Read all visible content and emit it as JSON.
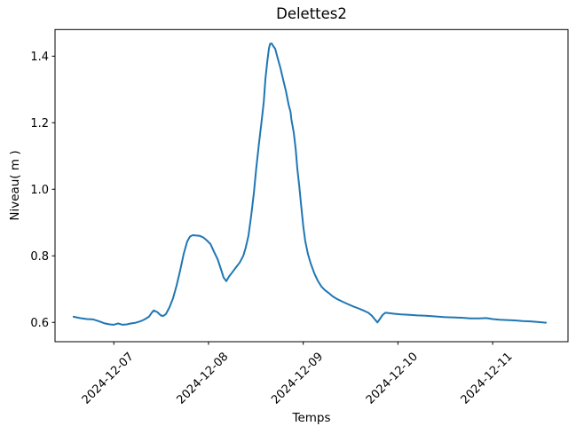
{
  "chart_data": {
    "type": "line",
    "title": "Delettes2",
    "xlabel": "Temps",
    "ylabel": "Niveau( m )",
    "line_color": "#1f77b4",
    "axis_color": "#000000",
    "grid": false,
    "legend": null,
    "x_unit": "hours since 2024-12-06 00:00",
    "xlim_hours": [
      9.1,
      139.1
    ],
    "ylim": [
      0.542,
      1.48
    ],
    "xticks": [
      {
        "label": "2024-12-07",
        "t": 24
      },
      {
        "label": "2024-12-08",
        "t": 48
      },
      {
        "label": "2024-12-09",
        "t": 72
      },
      {
        "label": "2024-12-10",
        "t": 96
      },
      {
        "label": "2024-12-11",
        "t": 120
      }
    ],
    "yticks": [
      0.6,
      0.8,
      1.0,
      1.2,
      1.4
    ],
    "series": [
      {
        "name": "Niveau",
        "points": [
          [
            13.8,
            0.617
          ],
          [
            15.4,
            0.613
          ],
          [
            17.2,
            0.61
          ],
          [
            18.8,
            0.609
          ],
          [
            20.3,
            0.603
          ],
          [
            21.7,
            0.597
          ],
          [
            23.0,
            0.594
          ],
          [
            24.0,
            0.593
          ],
          [
            25.1,
            0.597
          ],
          [
            26.2,
            0.593
          ],
          [
            27.3,
            0.594
          ],
          [
            28.4,
            0.597
          ],
          [
            29.6,
            0.599
          ],
          [
            30.7,
            0.603
          ],
          [
            31.8,
            0.609
          ],
          [
            32.9,
            0.617
          ],
          [
            33.6,
            0.629
          ],
          [
            34.1,
            0.636
          ],
          [
            35.0,
            0.631
          ],
          [
            35.9,
            0.621
          ],
          [
            36.5,
            0.619
          ],
          [
            37.2,
            0.625
          ],
          [
            38.1,
            0.645
          ],
          [
            39.0,
            0.672
          ],
          [
            39.9,
            0.71
          ],
          [
            40.8,
            0.755
          ],
          [
            41.7,
            0.805
          ],
          [
            42.6,
            0.843
          ],
          [
            43.3,
            0.858
          ],
          [
            44.0,
            0.862
          ],
          [
            44.9,
            0.861
          ],
          [
            45.8,
            0.86
          ],
          [
            46.7,
            0.855
          ],
          [
            47.6,
            0.846
          ],
          [
            48.5,
            0.835
          ],
          [
            49.4,
            0.812
          ],
          [
            50.3,
            0.79
          ],
          [
            51.2,
            0.758
          ],
          [
            51.8,
            0.735
          ],
          [
            52.5,
            0.724
          ],
          [
            53.2,
            0.738
          ],
          [
            54.1,
            0.752
          ],
          [
            55.0,
            0.766
          ],
          [
            55.9,
            0.78
          ],
          [
            56.8,
            0.8
          ],
          [
            57.4,
            0.823
          ],
          [
            58.1,
            0.86
          ],
          [
            58.8,
            0.92
          ],
          [
            59.5,
            0.99
          ],
          [
            60.1,
            1.065
          ],
          [
            60.8,
            1.14
          ],
          [
            61.5,
            1.21
          ],
          [
            62.0,
            1.262
          ],
          [
            62.4,
            1.33
          ],
          [
            62.9,
            1.385
          ],
          [
            63.3,
            1.423
          ],
          [
            63.6,
            1.437
          ],
          [
            64.0,
            1.438
          ],
          [
            64.4,
            1.43
          ],
          [
            64.9,
            1.422
          ],
          [
            65.5,
            1.395
          ],
          [
            66.2,
            1.365
          ],
          [
            66.9,
            1.33
          ],
          [
            67.6,
            1.296
          ],
          [
            68.3,
            1.254
          ],
          [
            68.8,
            1.232
          ],
          [
            69.0,
            1.21
          ],
          [
            69.6,
            1.17
          ],
          [
            70.1,
            1.12
          ],
          [
            70.5,
            1.062
          ],
          [
            71.0,
            1.01
          ],
          [
            71.4,
            0.96
          ],
          [
            72.0,
            0.889
          ],
          [
            72.5,
            0.845
          ],
          [
            73.2,
            0.805
          ],
          [
            73.9,
            0.777
          ],
          [
            74.8,
            0.748
          ],
          [
            75.7,
            0.725
          ],
          [
            76.6,
            0.708
          ],
          [
            77.5,
            0.697
          ],
          [
            78.4,
            0.689
          ],
          [
            79.5,
            0.678
          ],
          [
            80.6,
            0.67
          ],
          [
            82.0,
            0.662
          ],
          [
            83.3,
            0.655
          ],
          [
            84.7,
            0.648
          ],
          [
            86.0,
            0.642
          ],
          [
            87.4,
            0.635
          ],
          [
            88.5,
            0.629
          ],
          [
            89.4,
            0.62
          ],
          [
            90.1,
            0.61
          ],
          [
            90.8,
            0.6
          ],
          [
            91.4,
            0.61
          ],
          [
            92.1,
            0.622
          ],
          [
            92.8,
            0.629
          ],
          [
            93.7,
            0.628
          ],
          [
            95.0,
            0.626
          ],
          [
            96.8,
            0.624
          ],
          [
            98.6,
            0.623
          ],
          [
            100.9,
            0.621
          ],
          [
            103.1,
            0.62
          ],
          [
            105.4,
            0.618
          ],
          [
            107.6,
            0.616
          ],
          [
            109.9,
            0.615
          ],
          [
            112.1,
            0.614
          ],
          [
            114.4,
            0.612
          ],
          [
            116.6,
            0.612
          ],
          [
            118.4,
            0.613
          ],
          [
            120.0,
            0.61
          ],
          [
            121.8,
            0.608
          ],
          [
            123.6,
            0.607
          ],
          [
            125.6,
            0.606
          ],
          [
            127.6,
            0.604
          ],
          [
            129.6,
            0.603
          ],
          [
            131.7,
            0.601
          ],
          [
            133.5,
            0.599
          ]
        ]
      }
    ]
  }
}
